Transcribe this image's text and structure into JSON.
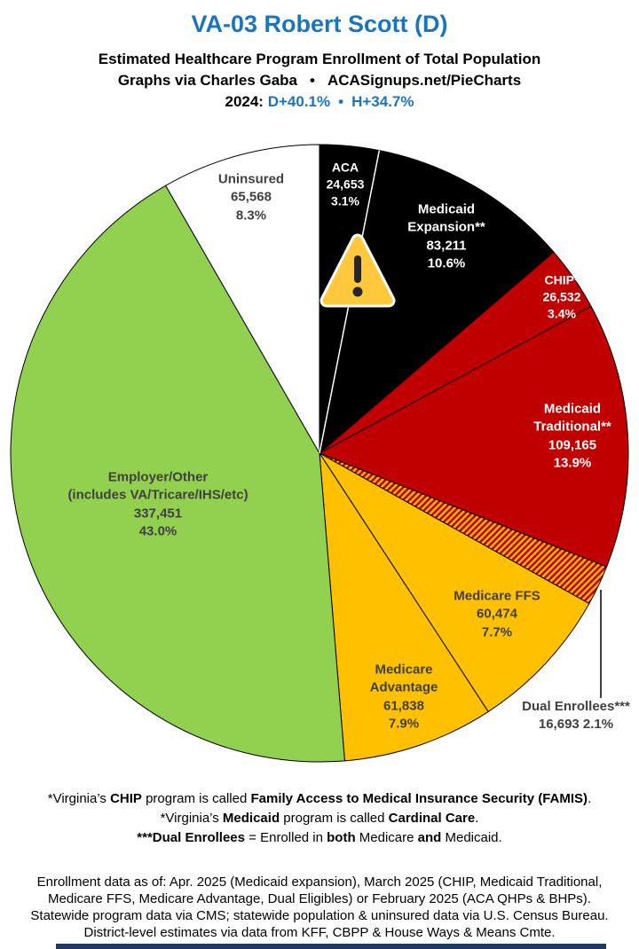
{
  "header": {
    "title": "VA-03 Robert Scott (D)",
    "subtitle": "Estimated Healthcare Program Enrollment of Total Population",
    "byline_left": "Graphs via Charles Gaba",
    "byline_sep": "•",
    "byline_right": "ACASignups.net/PieCharts",
    "year_label": "2024:",
    "d_margin": "D+40.1%",
    "margin_sep": "•",
    "h_margin": "H+34.7%"
  },
  "colors": {
    "title_blue": "#1B75BC",
    "black": "#000000",
    "dark_red": "#C00000",
    "gold": "#FFC000",
    "green": "#92D050",
    "label_gray": "#404040",
    "warning_yellow": "#FFC83D",
    "warning_glyph": "#262626",
    "bottom_bar": "#1F3864"
  },
  "chart_data": {
    "type": "pie",
    "title": "VA-03 Robert Scott (D) — Estimated Healthcare Program Enrollment of Total Population",
    "direction": "clockwise",
    "start_angle": "12 o'clock",
    "white_divider_after_slice": 0,
    "slices": [
      {
        "name": "aca",
        "label": "ACA",
        "value": 24653,
        "value_text": "24,653",
        "pct": 3.1,
        "pct_text": "3.1%",
        "fill": "#000000",
        "label_lines": [
          "ACA",
          "24,653",
          "3.1%"
        ],
        "label_x": 389,
        "label_y": 208,
        "label_color": "#FFFFFF",
        "label_size": 14
      },
      {
        "name": "medicaid-expansion",
        "label": "Medicaid Expansion**",
        "value": 83211,
        "value_text": "83,211",
        "pct": 10.6,
        "pct_text": "10.6%",
        "fill": "#000000",
        "label_lines": [
          "Medicaid",
          "Expansion**",
          "83,211",
          "10.6%"
        ],
        "label_x": 503,
        "label_y": 267,
        "label_color": "#FFFFFF",
        "label_size": 15
      },
      {
        "name": "chip",
        "label": "CHIP*",
        "value": 26532,
        "value_text": "26,532",
        "pct": 3.4,
        "pct_text": "3.4%",
        "fill": "#C00000",
        "label_lines": [
          "CHIP*",
          "26,532",
          "3.4%"
        ],
        "label_x": 633,
        "label_y": 335,
        "label_color": "#FFFFFF",
        "label_size": 14
      },
      {
        "name": "medicaid-traditional",
        "label": "Medicaid Traditional**",
        "value": 109165,
        "value_text": "109,165",
        "pct": 13.9,
        "pct_text": "13.9%",
        "fill": "#C00000",
        "label_lines": [
          "Medicaid",
          "Traditional**",
          "109,165",
          "13.9%"
        ],
        "label_x": 645,
        "label_y": 492,
        "label_color": "#FFFFFF",
        "label_size": 15
      },
      {
        "name": "dual-enrollees",
        "label": "Dual Enrollees***",
        "value": 16693,
        "value_text": "16,693",
        "pct": 2.1,
        "pct_text": "2.1%",
        "fill": "hatch",
        "label_lines": [
          "Dual Enrollees***",
          "16,693 2.1%"
        ],
        "label_x": 649,
        "label_y": 807,
        "label_color": "#404040",
        "label_size": 15
      },
      {
        "name": "medicare-ffs",
        "label": "Medicare FFS",
        "value": 60474,
        "value_text": "60,474",
        "pct": 7.7,
        "pct_text": "7.7%",
        "fill": "#FFC000",
        "label_lines": [
          "Medicare FFS",
          "60,474",
          "7.7%"
        ],
        "label_x": 560,
        "label_y": 693,
        "label_color": "#404040",
        "label_size": 15
      },
      {
        "name": "medicare-advantage",
        "label": "Medicare Advantage",
        "value": 61838,
        "value_text": "61,838",
        "pct": 7.9,
        "pct_text": "7.9%",
        "fill": "#FFC000",
        "label_lines": [
          "Medicare",
          "Advantage",
          "61,838",
          "7.9%"
        ],
        "label_x": 455,
        "label_y": 786,
        "label_color": "#404040",
        "label_size": 15
      },
      {
        "name": "employer-other",
        "label": "Employer/Other (includes VA/Tricare/IHS/etc)",
        "value": 337451,
        "value_text": "337,451",
        "pct": 43.0,
        "pct_text": "43.0%",
        "fill": "#92D050",
        "label_lines": [
          "Employer/Other",
          "(includes VA/Tricare/IHS/etc)",
          "337,451",
          "43.0%"
        ],
        "label_x": 178,
        "label_y": 569,
        "label_color": "#404040",
        "label_size": 15
      },
      {
        "name": "uninsured",
        "label": "Uninsured",
        "value": 65568,
        "value_text": "65,568",
        "pct": 8.3,
        "pct_text": "8.3%",
        "fill": "#FFFFFF",
        "label_lines": [
          "Uninsured",
          "65,568",
          "8.3%"
        ],
        "label_x": 283,
        "label_y": 223,
        "label_color": "#404040",
        "label_size": 15
      }
    ]
  },
  "footnotes": [
    [
      {
        "t": "*Virginia’s ",
        "b": false
      },
      {
        "t": "CHIP",
        "b": true
      },
      {
        "t": " program is called ",
        "b": false
      },
      {
        "t": "Family Access to Medical Insurance Security (FAMIS)",
        "b": true
      },
      {
        "t": ".",
        "b": false
      }
    ],
    [
      {
        "t": "*Virginia’s ",
        "b": false
      },
      {
        "t": "Medicaid",
        "b": true
      },
      {
        "t": " program is called ",
        "b": false
      },
      {
        "t": "Cardinal Care",
        "b": true
      },
      {
        "t": ".",
        "b": false
      }
    ],
    [
      {
        "t": "***Dual Enrollees",
        "b": true
      },
      {
        "t": " = Enrolled in ",
        "b": false
      },
      {
        "t": "both",
        "b": true
      },
      {
        "t": " Medicare ",
        "b": false
      },
      {
        "t": "and",
        "b": true
      },
      {
        "t": " Medicaid.",
        "b": false
      }
    ]
  ],
  "sources": {
    "lines": [
      "Enrollment data as of: Apr. 2025 (Medicaid expansion), March 2025 (CHIP, Medicaid Traditional,",
      "Medicare FFS, Medicare Advantage, Dual Eligibles) or February 2025 (ACA QHPs & BHPs).",
      "Statewide program data via CMS; statewide population & uninsured data via U.S. Census Bureau.",
      "District-level estimates via data from KFF, CBPP & House Ways & Means Cmte."
    ]
  }
}
